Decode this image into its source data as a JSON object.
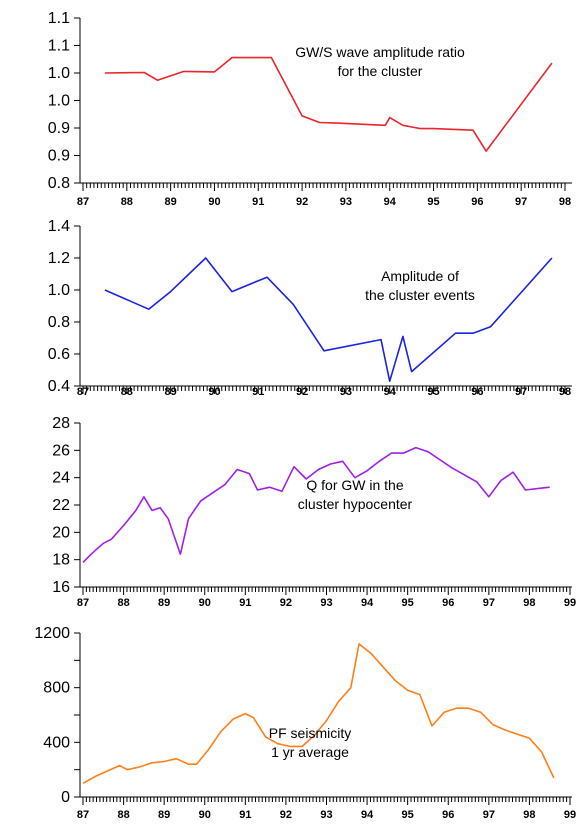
{
  "chart_data": [
    {
      "type": "line",
      "color": "#e8262b",
      "annotation": [
        "GW/S wave amplitude ratio",
        "for the cluster"
      ],
      "ylim": [
        0.8,
        1.1
      ],
      "ytick_values": [
        0.8,
        0.85,
        0.9,
        0.95,
        1.0,
        1.05,
        1.1
      ],
      "ytick_labels": [
        "0.8",
        "0.9",
        "0.9",
        "1.0",
        "1.0",
        "1.1",
        "1.1"
      ],
      "xlim": [
        87,
        98
      ],
      "xtick_labels": [
        "87",
        "88",
        "89",
        "90",
        "91",
        "92",
        "93",
        "94",
        "95",
        "96",
        "97",
        "98"
      ],
      "x": [
        87.5,
        88.4,
        88.7,
        89.3,
        90.0,
        90.4,
        91.3,
        92.0,
        92.4,
        92.8,
        93.9,
        94.0,
        94.3,
        94.7,
        95.0,
        95.9,
        96.2,
        97.7
      ],
      "y": [
        1.0,
        1.001,
        0.987,
        1.003,
        1.002,
        1.028,
        1.028,
        0.922,
        0.91,
        0.909,
        0.905,
        0.919,
        0.905,
        0.899,
        0.899,
        0.896,
        0.858,
        1.018
      ]
    },
    {
      "type": "line",
      "color": "#1a24e0",
      "annotation": [
        "Amplitude of",
        "the cluster events"
      ],
      "ylim": [
        0.4,
        1.4
      ],
      "ytick_values": [
        0.4,
        0.6,
        0.8,
        1.0,
        1.2,
        1.4
      ],
      "ytick_labels": [
        "0.4",
        "0.6",
        "0.8",
        "1.0",
        "1.2",
        "1.4"
      ],
      "xlim": [
        87,
        98
      ],
      "xtick_labels": [
        "87",
        "88",
        "89",
        "90",
        "91",
        "92",
        "93",
        "94",
        "95",
        "96",
        "97",
        "98"
      ],
      "x": [
        87.5,
        88.5,
        89.0,
        89.8,
        90.4,
        91.2,
        91.8,
        92.5,
        93.8,
        94.0,
        94.3,
        94.5,
        95.5,
        95.9,
        96.3,
        97.7
      ],
      "y": [
        1.0,
        0.88,
        0.99,
        1.2,
        0.99,
        1.08,
        0.91,
        0.62,
        0.69,
        0.43,
        0.71,
        0.49,
        0.73,
        0.73,
        0.77,
        1.2
      ]
    },
    {
      "type": "line",
      "color": "#a020e8",
      "annotation": [
        "Q for GW in the",
        "cluster hypocenter"
      ],
      "ylim": [
        16,
        28
      ],
      "ytick_values": [
        16,
        18,
        20,
        22,
        24,
        26,
        28
      ],
      "ytick_labels": [
        "16",
        "18",
        "20",
        "22",
        "24",
        "26",
        "28"
      ],
      "xlim": [
        87,
        99
      ],
      "xtick_labels": [
        "87",
        "88",
        "89",
        "90",
        "91",
        "92",
        "93",
        "94",
        "95",
        "96",
        "97",
        "98",
        "99"
      ],
      "x": [
        87.0,
        87.2,
        87.5,
        87.7,
        88.0,
        88.3,
        88.5,
        88.7,
        88.9,
        89.1,
        89.4,
        89.6,
        89.9,
        90.2,
        90.5,
        90.8,
        91.1,
        91.3,
        91.6,
        91.9,
        92.2,
        92.5,
        92.8,
        93.1,
        93.4,
        93.7,
        94.0,
        94.3,
        94.6,
        94.9,
        95.2,
        95.5,
        95.8,
        96.1,
        96.4,
        96.7,
        97.0,
        97.3,
        97.6,
        97.9,
        98.2,
        98.5
      ],
      "y": [
        17.8,
        18.4,
        19.2,
        19.5,
        20.5,
        21.6,
        22.6,
        21.6,
        21.8,
        21.0,
        18.4,
        21.0,
        22.3,
        22.9,
        23.5,
        24.6,
        24.3,
        23.1,
        23.3,
        23.0,
        24.8,
        23.9,
        24.6,
        25.0,
        25.2,
        24.0,
        24.5,
        25.2,
        25.8,
        25.8,
        26.2,
        25.9,
        25.3,
        24.7,
        24.2,
        23.7,
        22.6,
        23.8,
        24.4,
        23.1,
        23.2,
        23.3
      ]
    },
    {
      "type": "line",
      "color": "#ff7f1a",
      "annotation": [
        "PF seismicity",
        "1 yr average"
      ],
      "ylim": [
        0,
        1200
      ],
      "ytick_values": [
        0,
        200,
        400,
        600,
        800,
        1000,
        1200
      ],
      "ytick_labels": [
        "0",
        "",
        "400",
        "",
        "800",
        "",
        "1200"
      ],
      "xlim": [
        87,
        99
      ],
      "xtick_labels": [
        "87",
        "88",
        "89",
        "90",
        "91",
        "92",
        "93",
        "94",
        "95",
        "96",
        "97",
        "98",
        "99"
      ],
      "x": [
        87.0,
        87.3,
        87.6,
        87.9,
        88.1,
        88.4,
        88.7,
        89.0,
        89.3,
        89.6,
        89.8,
        90.1,
        90.4,
        90.7,
        91.0,
        91.2,
        91.5,
        91.8,
        92.1,
        92.4,
        92.7,
        93.0,
        93.3,
        93.6,
        93.8,
        94.1,
        94.4,
        94.7,
        95.0,
        95.3,
        95.6,
        95.9,
        96.2,
        96.5,
        96.8,
        97.1,
        97.4,
        97.7,
        98.0,
        98.3,
        98.6
      ],
      "y": [
        100,
        150,
        190,
        230,
        200,
        220,
        250,
        260,
        280,
        240,
        240,
        350,
        480,
        570,
        610,
        580,
        440,
        390,
        370,
        370,
        450,
        560,
        700,
        800,
        1120,
        1050,
        950,
        850,
        780,
        750,
        520,
        620,
        650,
        650,
        620,
        530,
        490,
        460,
        430,
        330,
        140
      ]
    }
  ]
}
